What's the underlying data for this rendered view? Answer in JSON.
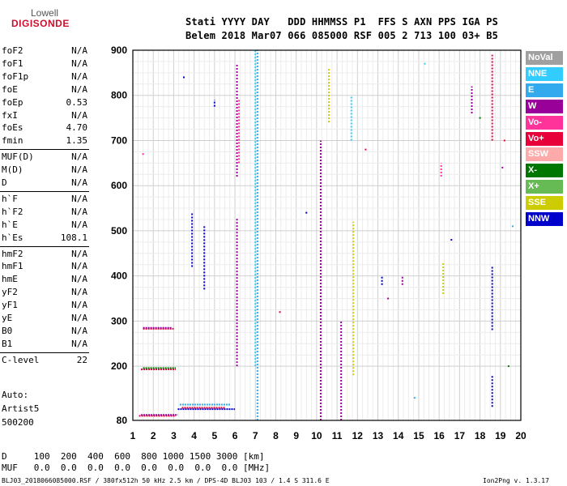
{
  "logo": {
    "line1": "Lowell",
    "line2": "DIGISONDE"
  },
  "header": {
    "line1": "Stati YYYY DAY   DDD HHMMSS P1  FFS S AXN PPS IGA PS",
    "line2": "Belem 2018 Mar07 066 085000 RSF 005 2 713 100 03+ B5"
  },
  "params": [
    {
      "name": "foF2",
      "value": "N/A"
    },
    {
      "name": "foF1",
      "value": "N/A"
    },
    {
      "name": "foF1p",
      "value": "N/A"
    },
    {
      "name": "foE",
      "value": "N/A"
    },
    {
      "name": "foEp",
      "value": "0.53"
    },
    {
      "name": "fxI",
      "value": "N/A"
    },
    {
      "name": "foEs",
      "value": "4.70"
    },
    {
      "name": "fmin",
      "value": "1.35"
    },
    {
      "name": "MUF(D)",
      "value": "N/A"
    },
    {
      "name": "M(D)",
      "value": "N/A"
    },
    {
      "name": "D",
      "value": "N/A"
    },
    {
      "name": "h`F",
      "value": "N/A"
    },
    {
      "name": "h`F2",
      "value": "N/A"
    },
    {
      "name": "h`E",
      "value": "N/A"
    },
    {
      "name": "h`Es",
      "value": "108.1"
    },
    {
      "name": "hmF2",
      "value": "N/A"
    },
    {
      "name": "hmF1",
      "value": "N/A"
    },
    {
      "name": "hmE",
      "value": "N/A"
    },
    {
      "name": "yF2",
      "value": "N/A"
    },
    {
      "name": "yF1",
      "value": "N/A"
    },
    {
      "name": "yE",
      "value": "N/A"
    },
    {
      "name": "B0",
      "value": "N/A"
    },
    {
      "name": "B1",
      "value": "N/A"
    },
    {
      "name": "C-level",
      "value": "22"
    }
  ],
  "auto": {
    "line1": "Auto:",
    "line2": "Artist5",
    "line3": "500200"
  },
  "legend": [
    {
      "label": "NoVal",
      "color": "#a0a0a0"
    },
    {
      "label": "NNE",
      "color": "#33ccff"
    },
    {
      "label": "E",
      "color": "#33aaee"
    },
    {
      "label": "W",
      "color": "#990099"
    },
    {
      "label": "Vo-",
      "color": "#ff3399"
    },
    {
      "label": "Vo+",
      "color": "#e8003a"
    },
    {
      "label": "SSW",
      "color": "#ffaaaa"
    },
    {
      "label": "X-",
      "color": "#007700"
    },
    {
      "label": "X+",
      "color": "#66bb55"
    },
    {
      "label": "SSE",
      "color": "#cccc00"
    },
    {
      "label": "NNW",
      "color": "#0000cc"
    }
  ],
  "footer": {
    "d_line": "D     100  200  400  600  800 1000 1500 3000 [km]",
    "muf_line": "MUF   0.0  0.0  0.0  0.0  0.0  0.0  0.0  0.0 [MHz]",
    "id_line": "BLJ03_2018066085000.RSF / 380fx512h 50 kHz 2.5 km / DPS-4D BLJ03 103 / 1.4 S 311.6 E",
    "version": "Ion2Png v. 1.3.17"
  },
  "chart_data": {
    "type": "scatter",
    "x_ticks": [
      "1",
      "2",
      "3",
      "4",
      "5",
      "6",
      "7",
      "8",
      "9",
      "10",
      "11",
      "12",
      "13",
      "14",
      "15",
      "16",
      "17",
      "18",
      "19",
      "20"
    ],
    "y_ticks": [
      "80",
      "200",
      "300",
      "400",
      "500",
      "600",
      "700",
      "800",
      "900"
    ],
    "xlim": [
      1,
      20
    ],
    "ylim": [
      80,
      900
    ],
    "grid": true,
    "traces": [
      {
        "kind": "seg",
        "orient": "h",
        "color": "#e8003a",
        "x0": 1.3,
        "x1": 3.1,
        "y": 90
      },
      {
        "kind": "seg",
        "orient": "h",
        "color": "#990099",
        "x0": 1.4,
        "x1": 3.2,
        "y": 92
      },
      {
        "kind": "seg",
        "orient": "h",
        "color": "#e8003a",
        "x0": 1.4,
        "x1": 3.1,
        "y": 193
      },
      {
        "kind": "seg",
        "orient": "h",
        "color": "#007700",
        "x0": 1.5,
        "x1": 3.1,
        "y": 196
      },
      {
        "kind": "seg",
        "orient": "h",
        "color": "#e8003a",
        "x0": 1.5,
        "x1": 3.0,
        "y": 283
      },
      {
        "kind": "seg",
        "orient": "h",
        "color": "#990099",
        "x0": 1.5,
        "x1": 2.9,
        "y": 285
      },
      {
        "kind": "seg",
        "orient": "h",
        "color": "#0000cc",
        "x0": 3.2,
        "x1": 6.0,
        "y": 105
      },
      {
        "kind": "seg",
        "orient": "h",
        "color": "#33aaee",
        "x0": 3.3,
        "x1": 5.8,
        "y": 115
      },
      {
        "kind": "seg",
        "orient": "h",
        "color": "#e8003a",
        "x0": 3.4,
        "x1": 5.5,
        "y": 108
      },
      {
        "kind": "seg",
        "orient": "v",
        "color": "#33aaee",
        "x": 7.1,
        "y0": 80,
        "y1": 900
      },
      {
        "kind": "seg",
        "orient": "v",
        "color": "#33ccff",
        "x": 7.0,
        "y0": 200,
        "y1": 900
      },
      {
        "kind": "seg",
        "orient": "v",
        "color": "#990099",
        "x": 6.1,
        "y0": 620,
        "y1": 870
      },
      {
        "kind": "seg",
        "orient": "v",
        "color": "#ff3399",
        "x": 6.2,
        "y0": 650,
        "y1": 790
      },
      {
        "kind": "seg",
        "orient": "v",
        "color": "#990099",
        "x": 6.1,
        "y0": 200,
        "y1": 530
      },
      {
        "kind": "seg",
        "orient": "v",
        "color": "#0000cc",
        "x": 4.5,
        "y0": 370,
        "y1": 510
      },
      {
        "kind": "seg",
        "orient": "v",
        "color": "#0000cc",
        "x": 3.9,
        "y0": 420,
        "y1": 540
      },
      {
        "kind": "seg",
        "orient": "v",
        "color": "#0000cc",
        "x": 5.0,
        "y0": 775,
        "y1": 790
      },
      {
        "kind": "seg",
        "orient": "v",
        "color": "#990099",
        "x": 10.2,
        "y0": 80,
        "y1": 700
      },
      {
        "kind": "seg",
        "orient": "v",
        "color": "#cccc00",
        "x": 10.6,
        "y0": 740,
        "y1": 860
      },
      {
        "kind": "seg",
        "orient": "v",
        "color": "#cccc00",
        "x": 11.8,
        "y0": 180,
        "y1": 520
      },
      {
        "kind": "seg",
        "orient": "v",
        "color": "#33ccff",
        "x": 11.7,
        "y0": 700,
        "y1": 800
      },
      {
        "kind": "seg",
        "orient": "v",
        "color": "#990099",
        "x": 11.2,
        "y0": 80,
        "y1": 300
      },
      {
        "kind": "seg",
        "orient": "v",
        "color": "#0000cc",
        "x": 18.6,
        "y0": 280,
        "y1": 420
      },
      {
        "kind": "seg",
        "orient": "v",
        "color": "#0000cc",
        "x": 18.6,
        "y0": 110,
        "y1": 180
      },
      {
        "kind": "seg",
        "orient": "v",
        "color": "#990099",
        "x": 17.6,
        "y0": 760,
        "y1": 820
      },
      {
        "kind": "seg",
        "orient": "v",
        "color": "#e8003a",
        "x": 18.6,
        "y0": 700,
        "y1": 890
      },
      {
        "kind": "seg",
        "orient": "v",
        "color": "#ff3399",
        "x": 16.1,
        "y0": 620,
        "y1": 650
      },
      {
        "kind": "seg",
        "orient": "v",
        "color": "#cccc00",
        "x": 16.2,
        "y0": 360,
        "y1": 430
      },
      {
        "kind": "seg",
        "orient": "v",
        "color": "#0000cc",
        "x": 13.2,
        "y0": 380,
        "y1": 400
      },
      {
        "kind": "seg",
        "orient": "v",
        "color": "#990099",
        "x": 14.2,
        "y0": 380,
        "y1": 400
      },
      {
        "kind": "pt",
        "color": "#0000cc",
        "x": 3.5,
        "y": 840
      },
      {
        "kind": "pt",
        "color": "#33ccff",
        "x": 15.3,
        "y": 870
      },
      {
        "kind": "pt",
        "color": "#e8003a",
        "x": 19.2,
        "y": 700
      },
      {
        "kind": "pt",
        "color": "#007700",
        "x": 18.0,
        "y": 750
      },
      {
        "kind": "pt",
        "color": "#33aaee",
        "x": 19.6,
        "y": 510
      },
      {
        "kind": "pt",
        "color": "#e8003a",
        "x": 12.4,
        "y": 680
      },
      {
        "kind": "pt",
        "color": "#0000cc",
        "x": 9.5,
        "y": 540
      },
      {
        "kind": "pt",
        "color": "#990099",
        "x": 13.5,
        "y": 350
      },
      {
        "kind": "pt",
        "color": "#007700",
        "x": 19.4,
        "y": 200
      },
      {
        "kind": "pt",
        "color": "#33aaee",
        "x": 14.8,
        "y": 130
      },
      {
        "kind": "pt",
        "color": "#e8003a",
        "x": 8.2,
        "y": 320
      },
      {
        "kind": "pt",
        "color": "#0000cc",
        "x": 16.6,
        "y": 480
      },
      {
        "kind": "pt",
        "color": "#990099",
        "x": 19.1,
        "y": 640
      },
      {
        "kind": "pt",
        "color": "#ff3399",
        "x": 1.5,
        "y": 670
      }
    ]
  }
}
